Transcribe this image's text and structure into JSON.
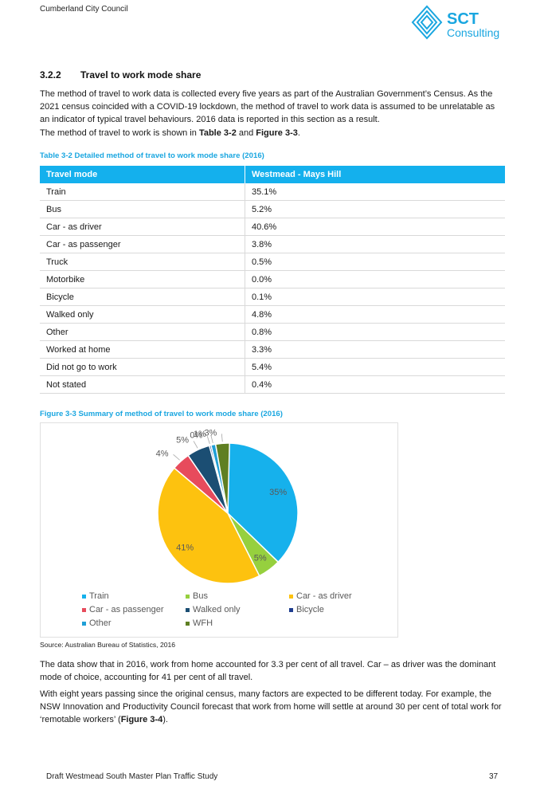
{
  "header": {
    "organisation": "Cumberland City Council",
    "logo": {
      "primary_text": "SCT",
      "secondary_text": "Consulting",
      "color": "#19a6e0"
    }
  },
  "section": {
    "number": "3.2.2",
    "title": "Travel to work mode share"
  },
  "paragraphs": {
    "intro": "The method of travel to work data is collected every five years as part of the Australian Government’s Census. As the 2021 census coincided with a COVID-19 lockdown, the method of travel to work data is assumed to be unrelatable as an indicator of typical travel behaviours. 2016 data is reported in this section as a result.",
    "shown_prefix": "The method of travel to work is shown in ",
    "shown_table_ref": "Table 3-2",
    "shown_and": " and ",
    "shown_figure_ref": "Figure 3-3",
    "shown_end": ".",
    "data_show": "The data show that in 2016, work from home accounted for 3.3 per cent of all travel. Car – as driver was the dominant mode of choice, accounting for 41 per cent of all travel.",
    "eight_years_prefix": "With eight years passing since the original census, many factors are expected to be different today. For example, the NSW Innovation and Productivity Council forecast that work from home will settle at around 30 per cent of total work for ‘remotable workers’ (",
    "eight_years_ref": "Figure 3-4",
    "eight_years_end": ")."
  },
  "table": {
    "caption": "Table 3-2 Detailed method of travel to work mode share (2016)",
    "header_color": "#14b0ed",
    "columns": [
      "Travel mode",
      "Westmead - Mays Hill"
    ],
    "rows": [
      [
        "Train",
        "35.1%"
      ],
      [
        "Bus",
        "5.2%"
      ],
      [
        "Car - as driver",
        "40.6%"
      ],
      [
        "Car - as passenger",
        "3.8%"
      ],
      [
        "Truck",
        "0.5%"
      ],
      [
        "Motorbike",
        "0.0%"
      ],
      [
        "Bicycle",
        "0.1%"
      ],
      [
        "Walked only",
        "4.8%"
      ],
      [
        "Other",
        "0.8%"
      ],
      [
        "Worked at home",
        "3.3%"
      ],
      [
        "Did not go to work",
        "5.4%"
      ],
      [
        "Not stated",
        "0.4%"
      ]
    ]
  },
  "figure": {
    "caption": "Figure 3-3 Summary of method of travel to work mode share (2016)",
    "source": "Source: Australian Bureau of Statistics, 2016"
  },
  "chart_data": {
    "type": "pie",
    "title": "",
    "legend_position": "bottom",
    "slices": [
      {
        "name": "Train",
        "value": 35,
        "label": "35%",
        "color": "#16b1ec"
      },
      {
        "name": "Bus",
        "value": 5,
        "label": "5%",
        "color": "#96d03e"
      },
      {
        "name": "Car - as driver",
        "value": 41,
        "label": "41%",
        "color": "#fdc20f"
      },
      {
        "name": "Car - as passenger",
        "value": 4,
        "label": "4%",
        "color": "#e74b5c"
      },
      {
        "name": "Walked only",
        "value": 5,
        "label": "5%",
        "color": "#1b4e73"
      },
      {
        "name": "Bicycle",
        "value": 0,
        "label": "0%",
        "color": "#1e3d8f"
      },
      {
        "name": "Other",
        "value": 1,
        "label": "1%",
        "color": "#1f9fd6"
      },
      {
        "name": "WFH",
        "value": 3,
        "label": "3%",
        "color": "#5f7f22"
      }
    ]
  },
  "footer": {
    "document_title": "Draft Westmead South Master Plan Traffic Study",
    "page_number": "37"
  }
}
